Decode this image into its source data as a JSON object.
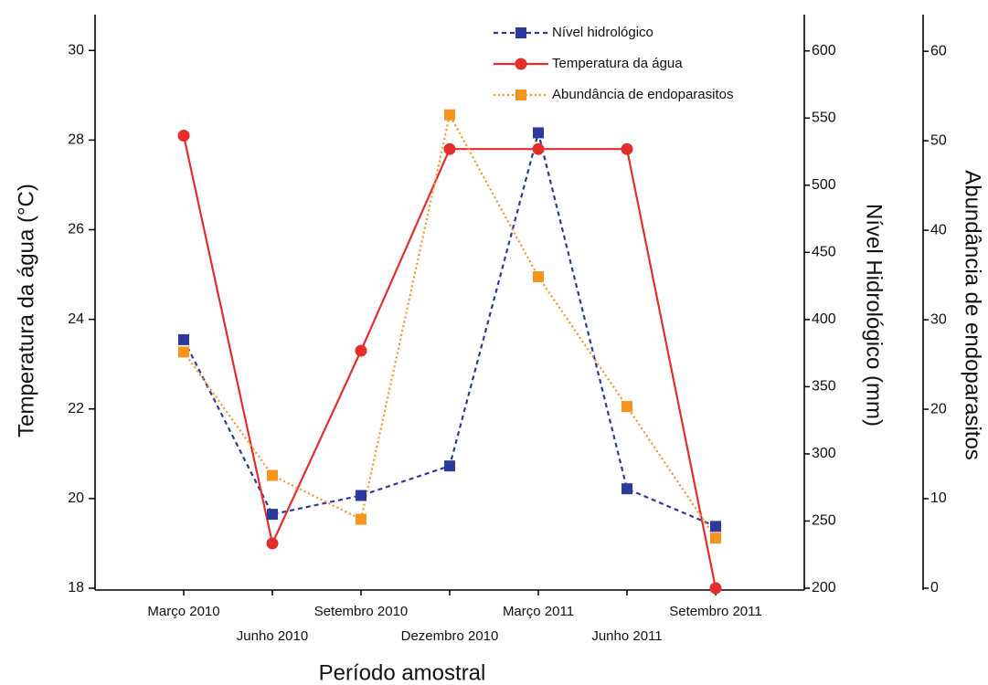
{
  "chart_data": {
    "type": "line",
    "x_label": "Período amostral",
    "y_label": "Temperatura da água (°C)",
    "y2_label": "Nível Hidrológico (mm)",
    "y3_label": "Abundância de endoparasitos",
    "categories": [
      "Março 2010",
      "Junho 2010",
      "Setembro 2010",
      "Dezembro 2010",
      "Março 2011",
      "Junho 2011",
      "Setembro 2011"
    ],
    "ylim": [
      18,
      30.8
    ],
    "yticks": [
      18,
      20,
      22,
      24,
      26,
      28,
      30
    ],
    "y2lim": [
      200,
      627
    ],
    "y2ticks": [
      200,
      250,
      300,
      350,
      400,
      450,
      500,
      550,
      600
    ],
    "y3lim": [
      0,
      64.1
    ],
    "y3ticks": [
      0,
      10,
      20,
      30,
      40,
      50,
      60
    ],
    "series": [
      {
        "name": "Nível hidrológico",
        "color": "#2b3a9c",
        "axis": "y2",
        "marker": "square",
        "dash": "dashed",
        "values": [
          385,
          255,
          269,
          291,
          539,
          274,
          246
        ]
      },
      {
        "name": "Temperatura da água",
        "color": "#e52d2a",
        "axis": "y",
        "marker": "circle",
        "dash": "solid",
        "values": [
          28.1,
          19.0,
          23.3,
          27.8,
          27.8,
          27.8,
          18.0
        ]
      },
      {
        "name": "Abundância de endoparasitos",
        "color": "#f7941d",
        "axis": "y3",
        "marker": "square",
        "dash": "dotted",
        "values": [
          26.4,
          12.6,
          7.7,
          52.9,
          34.8,
          20.3,
          5.6
        ]
      }
    ]
  }
}
